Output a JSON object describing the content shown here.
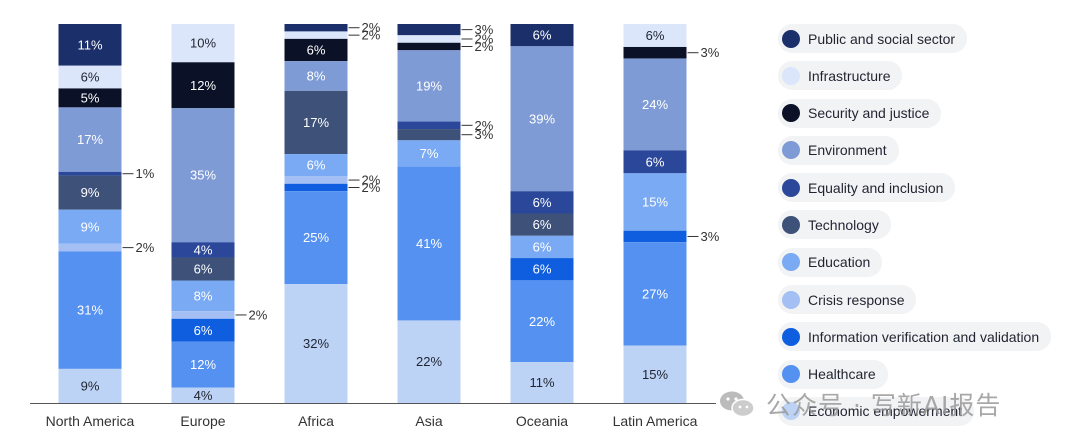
{
  "chart_data": {
    "type": "bar",
    "stacked": true,
    "percent": true,
    "categories": [
      "North America",
      "Europe",
      "Africa",
      "Asia",
      "Oceania",
      "Latin America"
    ],
    "series": [
      {
        "name": "Public and social sector",
        "color": "#1b2f6b",
        "values": [
          11,
          0,
          2,
          3,
          6,
          0
        ]
      },
      {
        "name": "Infrastructure",
        "color": "#dbe6fb",
        "values": [
          6,
          10,
          2,
          2,
          0,
          6
        ]
      },
      {
        "name": "Security and justice",
        "color": "#0b1228",
        "values": [
          5,
          12,
          6,
          2,
          0,
          3
        ]
      },
      {
        "name": "Environment",
        "color": "#7f9bd5",
        "values": [
          17,
          35,
          8,
          19,
          39,
          24
        ]
      },
      {
        "name": "Equality and inclusion",
        "color": "#2a479a",
        "values": [
          1,
          4,
          0,
          2,
          6,
          6
        ]
      },
      {
        "name": "Technology",
        "color": "#3e5179",
        "values": [
          9,
          6,
          17,
          3,
          6,
          0
        ]
      },
      {
        "name": "Education",
        "color": "#7aaaf3",
        "values": [
          9,
          8,
          6,
          7,
          6,
          15
        ]
      },
      {
        "name": "Crisis response",
        "color": "#a3bff4",
        "values": [
          2,
          2,
          2,
          0,
          0,
          0
        ]
      },
      {
        "name": "Information verification and validation",
        "color": "#0f5ee0",
        "values": [
          0,
          6,
          2,
          0,
          6,
          3
        ]
      },
      {
        "name": "Healthcare",
        "color": "#5591f1",
        "values": [
          31,
          12,
          25,
          41,
          22,
          27
        ]
      },
      {
        "name": "Economic empowerment",
        "color": "#bcd3f6",
        "values": [
          9,
          4,
          32,
          22,
          11,
          15
        ]
      }
    ],
    "legend_position": "right"
  },
  "watermark": {
    "text": "公众号 · 写新AI报告"
  }
}
